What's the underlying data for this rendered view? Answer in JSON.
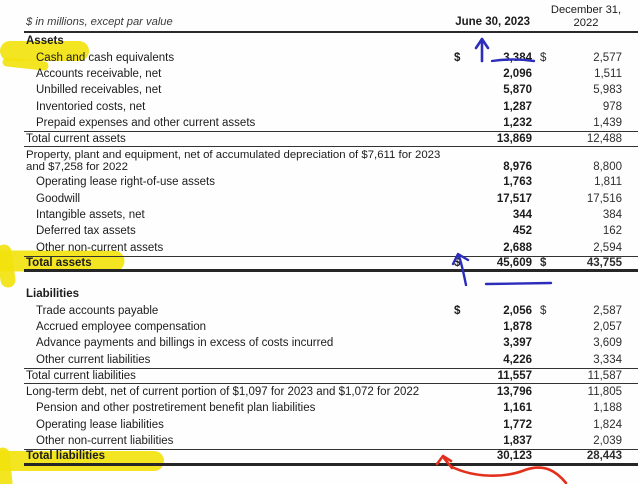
{
  "doc": {
    "unit_note": "$ in millions, except par value",
    "currency_symbol": "$",
    "col_2023_header": "June 30, 2023",
    "col_2022_header_line1": "December 31,",
    "col_2022_header_line2": "2022"
  },
  "sections": [
    {
      "header": "Assets",
      "rows": [
        {
          "label": "Cash and cash equivalents",
          "v2023": "3,384",
          "v2022": "2,577",
          "dollar": true,
          "highlight": true
        },
        {
          "label": "Accounts receivable, net",
          "v2023": "2,096",
          "v2022": "1,511"
        },
        {
          "label": "Unbilled receivables, net",
          "v2023": "5,870",
          "v2022": "5,983"
        },
        {
          "label": "Inventoried costs, net",
          "v2023": "1,287",
          "v2022": "978"
        },
        {
          "label": "Prepaid expenses and other current assets",
          "v2023": "1,232",
          "v2022": "1,439"
        },
        {
          "label": "Total current assets",
          "v2023": "13,869",
          "v2022": "12,488",
          "flush": true,
          "border_top": true,
          "border_bottom": "single"
        },
        {
          "label": "Property, plant and equipment, net of accumulated depreciation of $7,611 for 2023 and $7,258 for 2022",
          "v2023": "8,976",
          "v2022": "8,800",
          "flush": true,
          "two_line": true
        },
        {
          "label": "Operating lease right-of-use assets",
          "v2023": "1,763",
          "v2022": "1,811"
        },
        {
          "label": "Goodwill",
          "v2023": "17,517",
          "v2022": "17,516"
        },
        {
          "label": "Intangible assets, net",
          "v2023": "344",
          "v2022": "384"
        },
        {
          "label": "Deferred tax assets",
          "v2023": "452",
          "v2022": "162"
        },
        {
          "label": "Other non-current assets",
          "v2023": "2,688",
          "v2022": "2,594"
        },
        {
          "label": "Total assets",
          "v2023": "45,609",
          "v2022": "43,755",
          "dollar": true,
          "flush": true,
          "bold": true,
          "border_top": true,
          "border_bottom": "thick",
          "highlight": true
        }
      ]
    },
    {
      "header": "Liabilities",
      "rows": [
        {
          "label": "Trade accounts payable",
          "v2023": "2,056",
          "v2022": "2,587",
          "dollar": true
        },
        {
          "label": "Accrued employee compensation",
          "v2023": "1,878",
          "v2022": "2,057"
        },
        {
          "label": "Advance payments and billings in excess of costs incurred",
          "v2023": "3,397",
          "v2022": "3,609"
        },
        {
          "label": "Other current liabilities",
          "v2023": "4,226",
          "v2022": "3,334"
        },
        {
          "label": "Total current liabilities",
          "v2023": "11,557",
          "v2022": "11,587",
          "flush": true,
          "border_top": true,
          "border_bottom": "single"
        },
        {
          "label": "Long-term debt, net of current portion of $1,097 for 2023 and $1,072 for 2022",
          "v2023": "13,796",
          "v2022": "11,805",
          "flush": true
        },
        {
          "label": "Pension and other postretirement benefit plan liabilities",
          "v2023": "1,161",
          "v2022": "1,188"
        },
        {
          "label": "Operating lease liabilities",
          "v2023": "1,772",
          "v2022": "1,824"
        },
        {
          "label": "Other non-current liabilities",
          "v2023": "1,837",
          "v2022": "2,039"
        },
        {
          "label": "Total liabilities",
          "v2023": "30,123",
          "v2022": "28,443",
          "flush": true,
          "bold": true,
          "border_top": true,
          "border_bottom": "thick",
          "highlight": true
        }
      ]
    }
  ],
  "annotations": {
    "highlighter_color": "#f2e30e",
    "blue_pen_color": "#2d2dbb",
    "red_pen_color": "#e2301c",
    "marks": [
      {
        "type": "yellow-highlight",
        "target": "Cash and cash equivalents"
      },
      {
        "type": "yellow-highlight",
        "target": "Total assets"
      },
      {
        "type": "yellow-highlight",
        "target": "Total liabilities"
      },
      {
        "type": "blue-up-arrow-and-underline",
        "target": "3,384"
      },
      {
        "type": "blue-up-arrow-and-underline",
        "target": "45,609"
      },
      {
        "type": "red-up-arrow-with-tail",
        "target": "30,123"
      }
    ]
  }
}
